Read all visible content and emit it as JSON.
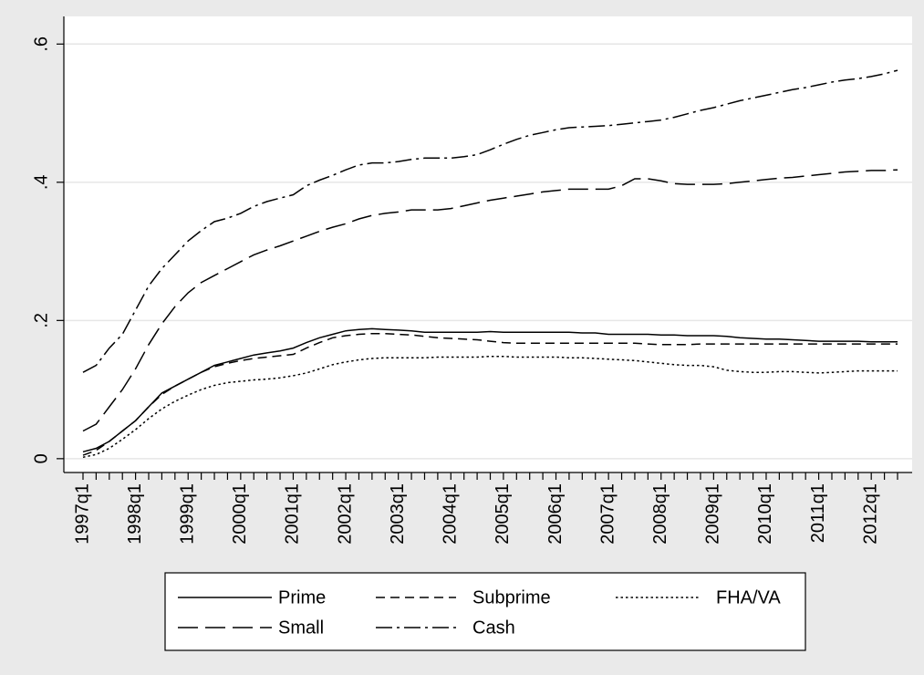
{
  "chart_data": {
    "type": "line",
    "categories": [
      "1997q1",
      null,
      null,
      null,
      "1998q1",
      null,
      null,
      null,
      "1999q1",
      null,
      null,
      null,
      "2000q1",
      null,
      null,
      null,
      "2001q1",
      null,
      null,
      null,
      "2002q1",
      null,
      null,
      null,
      "2003q1",
      null,
      null,
      null,
      "2004q1",
      null,
      null,
      null,
      "2005q1",
      null,
      null,
      null,
      "2006q1",
      null,
      null,
      null,
      "2007q1",
      null,
      null,
      null,
      "2008q1",
      null,
      null,
      null,
      "2009q1",
      null,
      null,
      null,
      "2010q1",
      null,
      null,
      null,
      "2011q1",
      null,
      null,
      null,
      "2012q1",
      null,
      null
    ],
    "series": [
      {
        "name": "Prime",
        "color": "#000000",
        "dash": "none",
        "values": [
          0.01,
          0.015,
          0.025,
          0.04,
          0.055,
          0.075,
          0.095,
          0.105,
          0.115,
          0.125,
          0.135,
          0.14,
          0.145,
          0.15,
          0.153,
          0.156,
          0.16,
          0.168,
          0.175,
          0.18,
          0.185,
          0.187,
          0.188,
          0.187,
          0.186,
          0.185,
          0.183,
          0.183,
          0.183,
          0.183,
          0.183,
          0.184,
          0.183,
          0.183,
          0.183,
          0.183,
          0.183,
          0.183,
          0.182,
          0.182,
          0.18,
          0.18,
          0.18,
          0.18,
          0.179,
          0.179,
          0.178,
          0.178,
          0.178,
          0.177,
          0.175,
          0.174,
          0.173,
          0.173,
          0.172,
          0.171,
          0.17,
          0.17,
          0.17,
          0.17,
          0.169,
          0.169,
          0.169
        ]
      },
      {
        "name": "Subprime",
        "color": "#000000",
        "dash": "10 6",
        "values": [
          0.005,
          0.012,
          0.025,
          0.04,
          0.055,
          0.075,
          0.093,
          0.105,
          0.115,
          0.125,
          0.133,
          0.138,
          0.142,
          0.145,
          0.147,
          0.149,
          0.151,
          0.16,
          0.168,
          0.175,
          0.178,
          0.18,
          0.181,
          0.181,
          0.18,
          0.179,
          0.177,
          0.175,
          0.174,
          0.173,
          0.172,
          0.17,
          0.168,
          0.167,
          0.167,
          0.167,
          0.167,
          0.167,
          0.167,
          0.167,
          0.167,
          0.167,
          0.167,
          0.166,
          0.165,
          0.165,
          0.165,
          0.166,
          0.166,
          0.166,
          0.166,
          0.166,
          0.166,
          0.166,
          0.166,
          0.166,
          0.166,
          0.166,
          0.166,
          0.166,
          0.166,
          0.166,
          0.166
        ]
      },
      {
        "name": "FHA/VA",
        "color": "#000000",
        "dash": "2.5 3",
        "values": [
          0.002,
          0.006,
          0.015,
          0.028,
          0.042,
          0.058,
          0.072,
          0.083,
          0.092,
          0.1,
          0.106,
          0.11,
          0.112,
          0.114,
          0.115,
          0.117,
          0.12,
          0.124,
          0.13,
          0.136,
          0.14,
          0.143,
          0.145,
          0.146,
          0.146,
          0.146,
          0.146,
          0.147,
          0.147,
          0.147,
          0.147,
          0.148,
          0.148,
          0.147,
          0.147,
          0.147,
          0.147,
          0.146,
          0.146,
          0.145,
          0.144,
          0.143,
          0.142,
          0.14,
          0.138,
          0.136,
          0.135,
          0.135,
          0.133,
          0.128,
          0.126,
          0.125,
          0.125,
          0.126,
          0.126,
          0.125,
          0.124,
          0.125,
          0.126,
          0.127,
          0.127,
          0.127,
          0.127
        ]
      },
      {
        "name": "Small",
        "color": "#000000",
        "dash": "22 8",
        "values": [
          0.04,
          0.05,
          0.075,
          0.1,
          0.13,
          0.165,
          0.195,
          0.22,
          0.24,
          0.255,
          0.265,
          0.275,
          0.285,
          0.295,
          0.302,
          0.308,
          0.315,
          0.322,
          0.329,
          0.335,
          0.34,
          0.347,
          0.352,
          0.355,
          0.357,
          0.36,
          0.36,
          0.36,
          0.362,
          0.366,
          0.37,
          0.374,
          0.377,
          0.38,
          0.383,
          0.386,
          0.388,
          0.39,
          0.39,
          0.39,
          0.39,
          0.395,
          0.405,
          0.405,
          0.402,
          0.398,
          0.397,
          0.397,
          0.397,
          0.398,
          0.4,
          0.402,
          0.404,
          0.406,
          0.407,
          0.409,
          0.411,
          0.413,
          0.415,
          0.416,
          0.417,
          0.417,
          0.418
        ]
      },
      {
        "name": "Cash",
        "color": "#000000",
        "dash": "18 5 3 5",
        "values": [
          0.125,
          0.135,
          0.16,
          0.18,
          0.215,
          0.25,
          0.275,
          0.295,
          0.315,
          0.33,
          0.343,
          0.348,
          0.355,
          0.365,
          0.372,
          0.377,
          0.382,
          0.395,
          0.403,
          0.41,
          0.418,
          0.425,
          0.428,
          0.428,
          0.43,
          0.433,
          0.435,
          0.435,
          0.435,
          0.437,
          0.44,
          0.447,
          0.455,
          0.462,
          0.468,
          0.472,
          0.476,
          0.479,
          0.48,
          0.481,
          0.482,
          0.484,
          0.486,
          0.488,
          0.49,
          0.494,
          0.499,
          0.504,
          0.508,
          0.513,
          0.518,
          0.522,
          0.526,
          0.53,
          0.534,
          0.537,
          0.541,
          0.545,
          0.548,
          0.55,
          0.553,
          0.557,
          0.562
        ]
      }
    ],
    "ylim": [
      -0.02,
      0.64
    ],
    "yticks": [
      0,
      {
        "value": 0.2,
        "label": ".2"
      },
      {
        "value": 0.4,
        "label": ".4"
      },
      {
        "value": 0.6,
        "label": ".6"
      }
    ],
    "grid": true,
    "legend": "bottom"
  }
}
